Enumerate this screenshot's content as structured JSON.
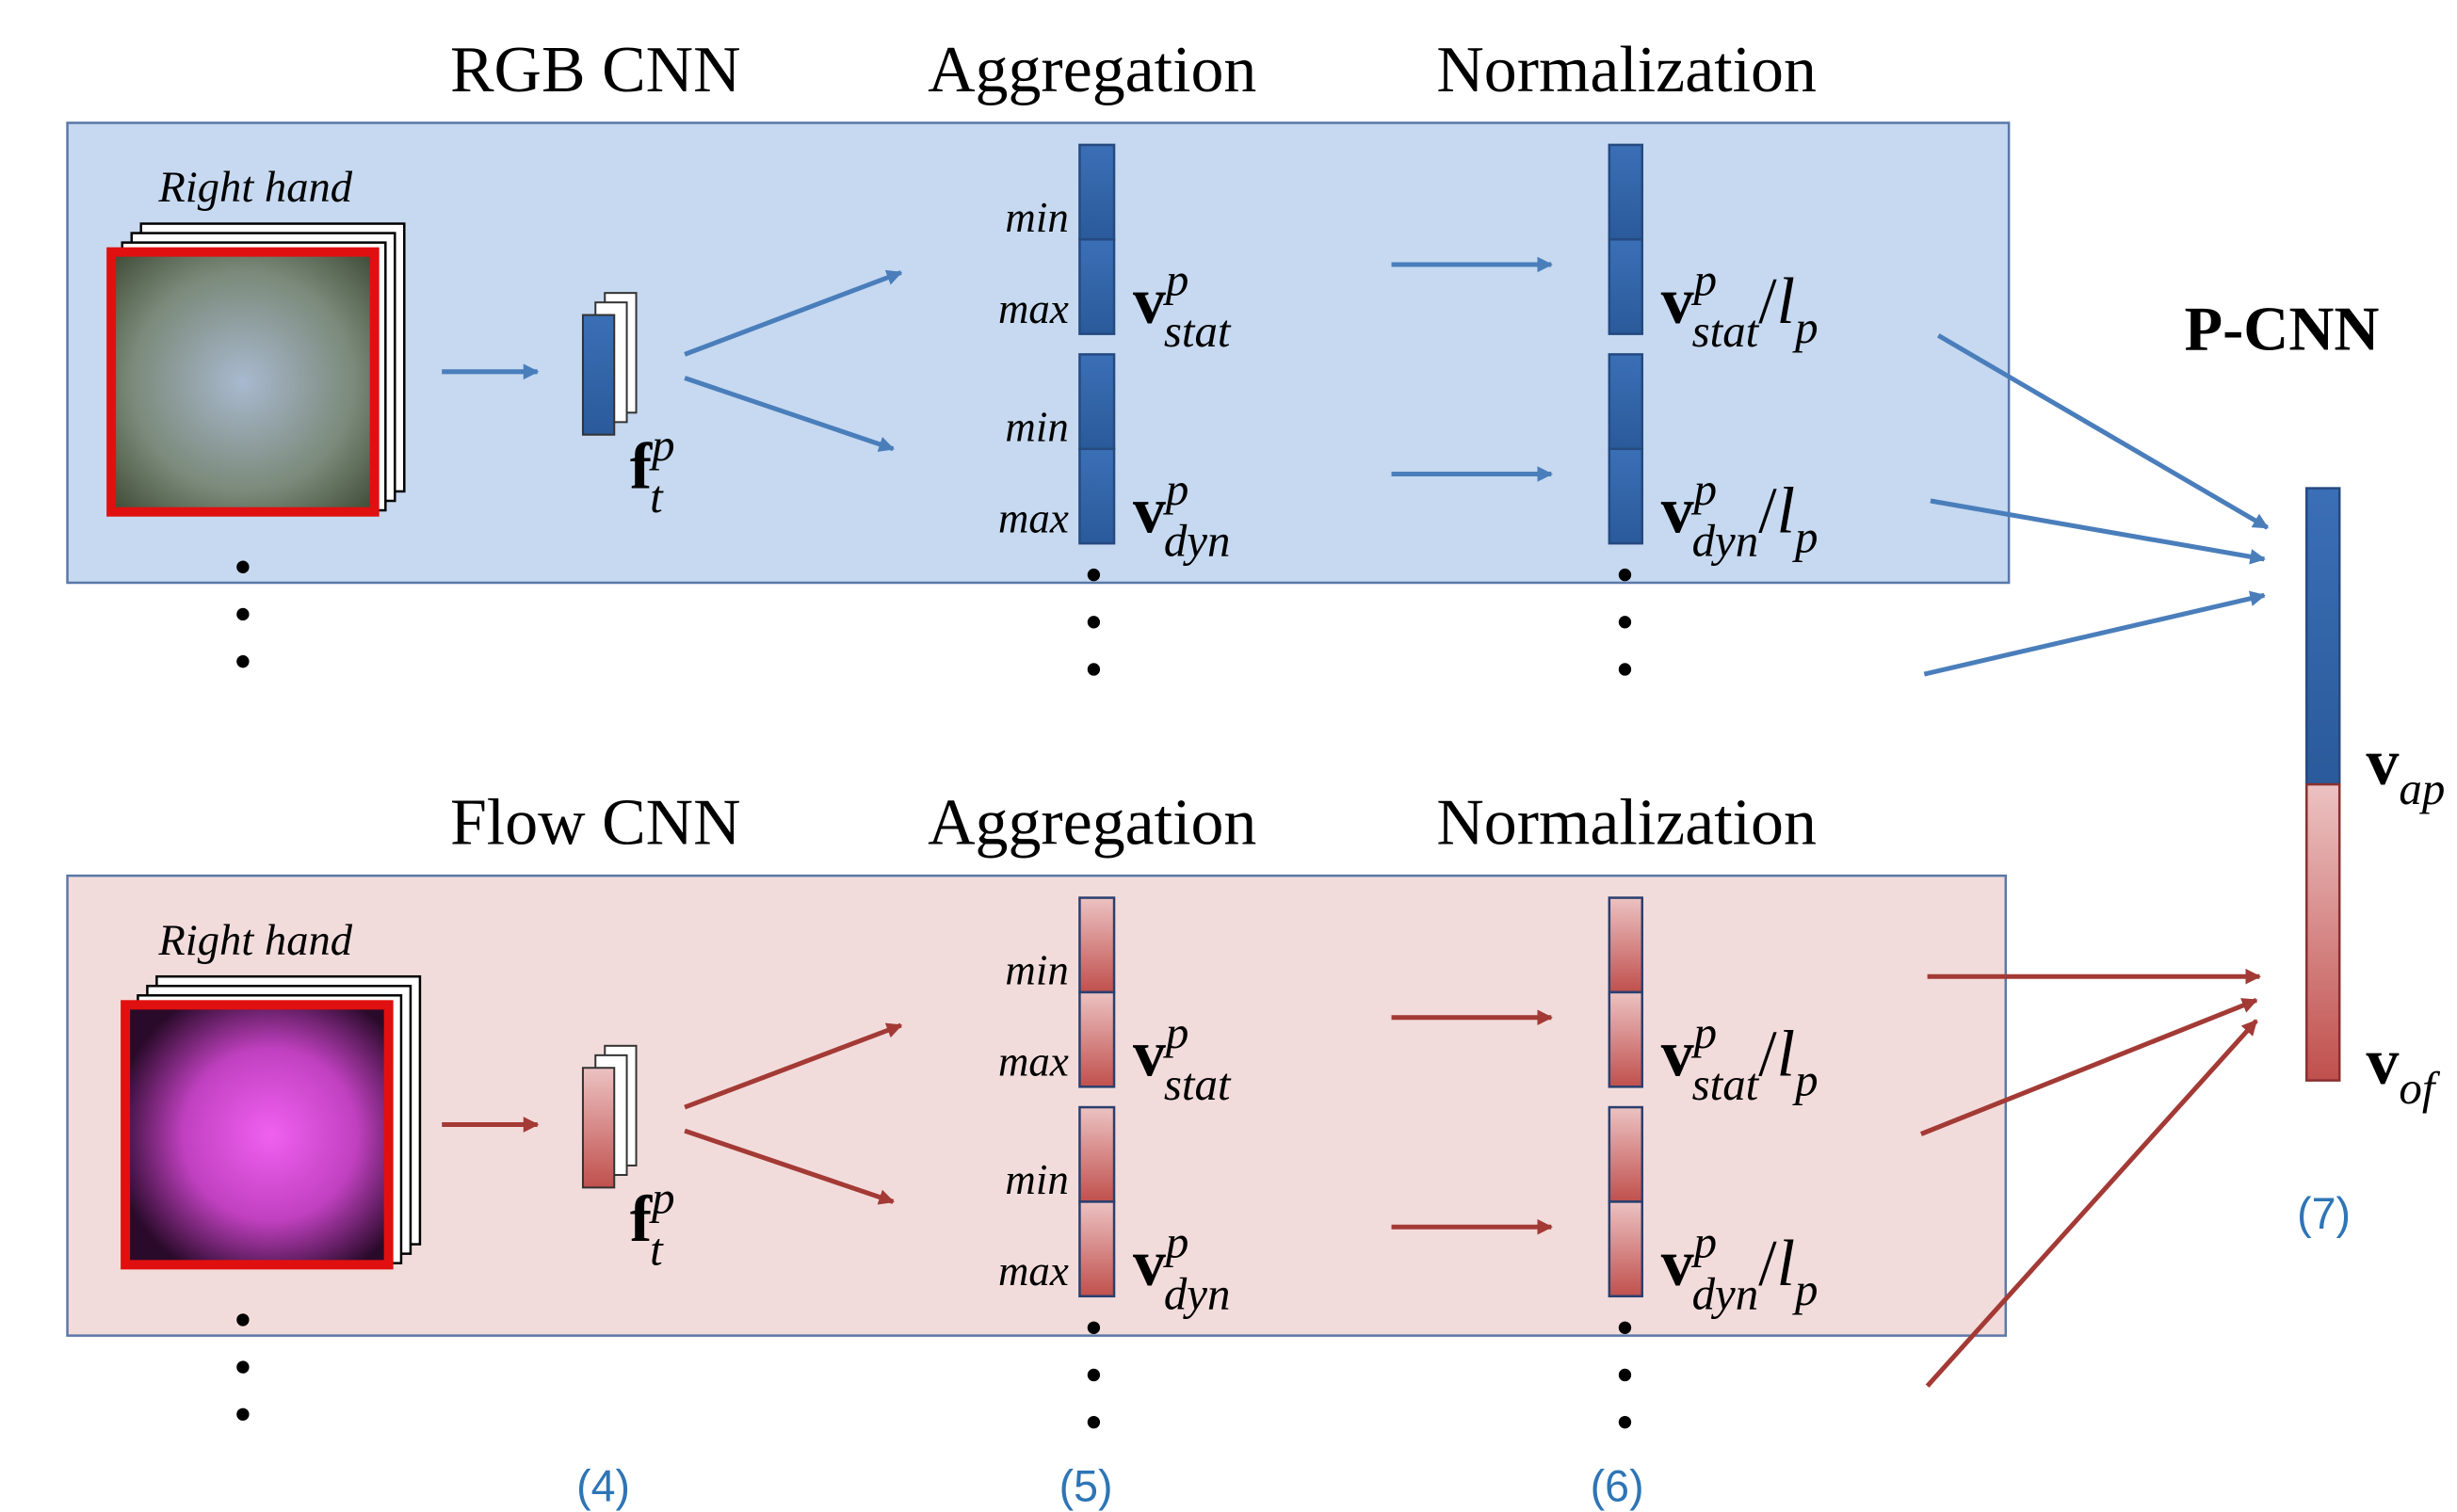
{
  "pipelines": [
    {
      "stage_titles": [
        "RGB CNN",
        "Aggregation",
        "Normalization"
      ],
      "input_label": "Right hand",
      "frame_feature": {
        "base": "f",
        "sup": "p",
        "sub": "t"
      },
      "aggregated": [
        {
          "pool": [
            "min",
            "max"
          ],
          "label": {
            "base": "v",
            "sup": "p",
            "sub": "stat"
          }
        },
        {
          "pool": [
            "min",
            "max"
          ],
          "label": {
            "base": "v",
            "sup": "p",
            "sub": "dyn"
          }
        }
      ],
      "normalized": [
        {
          "base": "v",
          "sup": "p",
          "sub": "stat",
          "div": "/",
          "denom": "l",
          "denom_sub": "p"
        },
        {
          "base": "v",
          "sup": "p",
          "sub": "dyn",
          "div": "/",
          "denom": "l",
          "denom_sub": "p"
        }
      ]
    },
    {
      "stage_titles": [
        "Flow CNN",
        "Aggregation",
        "Normalization"
      ],
      "input_label": "Right hand",
      "frame_feature": {
        "base": "f",
        "sup": "p",
        "sub": "t"
      },
      "aggregated": [
        {
          "pool": [
            "min",
            "max"
          ],
          "label": {
            "base": "v",
            "sup": "p",
            "sub": "stat"
          }
        },
        {
          "pool": [
            "min",
            "max"
          ],
          "label": {
            "base": "v",
            "sup": "p",
            "sub": "dyn"
          }
        }
      ],
      "normalized": [
        {
          "base": "v",
          "sup": "p",
          "sub": "stat",
          "div": "/",
          "denom": "l",
          "denom_sub": "p"
        },
        {
          "base": "v",
          "sup": "p",
          "sub": "dyn",
          "div": "/",
          "denom": "l",
          "denom_sub": "p"
        }
      ]
    }
  ],
  "p_cnn": {
    "title": "P-CNN",
    "parts": [
      {
        "base": "v",
        "sub": "ap"
      },
      {
        "base": "v",
        "sub": "of"
      }
    ]
  },
  "equations": [
    "(4)",
    "(5)",
    "(6)",
    "(7)"
  ]
}
